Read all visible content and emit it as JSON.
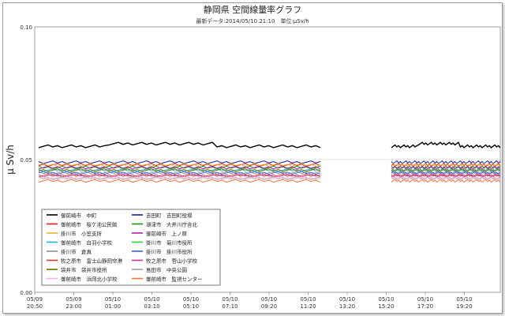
{
  "chart_data": {
    "type": "line",
    "title": "静岡県 空間線量率グラフ",
    "subtitle": "最新データ:2014/05/10 21:10　単位:μSv/h",
    "ylabel": "μ Sv/h",
    "xlabel": "",
    "ylim": [
      0.0,
      0.1
    ],
    "y_ticks": [
      "0.00",
      "0.05",
      "0.10"
    ],
    "grid": true,
    "legend_placement": "bottom-left",
    "x_ticks": [
      {
        "date": "05/09",
        "time": "20:50"
      },
      {
        "date": "05/09",
        "time": "23:00"
      },
      {
        "date": "05/10",
        "time": "01:00"
      },
      {
        "date": "05/10",
        "time": "03:10"
      },
      {
        "date": "05/10",
        "time": "05:10"
      },
      {
        "date": "05/10",
        "time": "07:10"
      },
      {
        "date": "05/10",
        "time": "09:20"
      },
      {
        "date": "05/10",
        "time": "11:20"
      },
      {
        "date": "05/10",
        "time": "13:20"
      },
      {
        "date": "05/10",
        "time": "15:20"
      },
      {
        "date": "05/10",
        "time": "17:20"
      },
      {
        "date": "05/10",
        "time": "19:20"
      }
    ],
    "x_range": [
      "05/09 20:50",
      "05/10 21:10"
    ],
    "data_gap": [
      "05/10 11:20",
      "05/10 15:20"
    ],
    "series": [
      {
        "name": "御前崎市　中町",
        "color": "#000000",
        "values": [
          0.055,
          0.055,
          0.056,
          0.056,
          0.056,
          0.055,
          0.055,
          0.055,
          0.055
        ]
      },
      {
        "name": "吉田町　吉田町役場",
        "color": "#1a1aa8",
        "values": [
          0.049,
          0.049,
          0.049,
          0.049,
          0.049,
          0.049,
          0.049,
          0.049,
          0.049
        ]
      },
      {
        "name": "御前崎市　桜ケ池公民館",
        "color": "#e02020",
        "values": [
          0.048,
          0.048,
          0.048,
          0.048,
          0.048,
          0.048,
          0.048,
          0.048,
          0.048
        ]
      },
      {
        "name": "湖津市　大井川庁舎北",
        "color": "#1a8c1a",
        "values": [
          0.047,
          0.047,
          0.047,
          0.047,
          0.047,
          0.047,
          0.047,
          0.047,
          0.047
        ]
      },
      {
        "name": "掛川市　小笠支所",
        "color": "#f0b030",
        "values": [
          0.048,
          0.048,
          0.048,
          0.048,
          0.048,
          0.048,
          0.048,
          0.048,
          0.048
        ]
      },
      {
        "name": "御前崎市　上ノ原",
        "color": "#b020b0",
        "values": [
          0.047,
          0.047,
          0.047,
          0.047,
          0.047,
          0.047,
          0.047,
          0.047,
          0.047
        ]
      },
      {
        "name": "御前崎市　白羽小学校",
        "color": "#20b0d0",
        "values": [
          0.046,
          0.046,
          0.046,
          0.046,
          0.046,
          0.046,
          0.046,
          0.046,
          0.046
        ]
      },
      {
        "name": "掛川市　菊川市役所",
        "color": "#30d030",
        "values": [
          0.046,
          0.046,
          0.046,
          0.046,
          0.046,
          0.046,
          0.046,
          0.046,
          0.046
        ]
      },
      {
        "name": "掛川市　倉真",
        "color": "#909090",
        "values": [
          0.045,
          0.045,
          0.045,
          0.045,
          0.045,
          0.045,
          0.045,
          0.045,
          0.045
        ]
      },
      {
        "name": "掛川市　掛川市役所",
        "color": "#4060e0",
        "values": [
          0.045,
          0.045,
          0.045,
          0.045,
          0.045,
          0.045,
          0.045,
          0.045,
          0.045
        ]
      },
      {
        "name": "牧之原市　富士山静岡空港",
        "color": "#d04020",
        "values": [
          0.044,
          0.044,
          0.044,
          0.044,
          0.044,
          0.044,
          0.044,
          0.044,
          0.044
        ]
      },
      {
        "name": "牧之原市　菅山小学校",
        "color": "#d030a0",
        "values": [
          0.044,
          0.044,
          0.044,
          0.044,
          0.044,
          0.044,
          0.044,
          0.044,
          0.044
        ]
      },
      {
        "name": "袋井市　袋井市役所",
        "color": "#707000",
        "values": [
          0.046,
          0.046,
          0.046,
          0.046,
          0.046,
          0.046,
          0.046,
          0.046,
          0.046
        ]
      },
      {
        "name": "島田市　中央公園",
        "color": "#a0a0a0",
        "values": [
          0.043,
          0.043,
          0.043,
          0.043,
          0.043,
          0.043,
          0.043,
          0.043,
          0.043
        ]
      },
      {
        "name": "御前崎市　浜岡北小学校",
        "color": "#ffb0e0",
        "values": [
          0.043,
          0.043,
          0.043,
          0.043,
          0.043,
          0.043,
          0.043,
          0.043,
          0.043
        ]
      },
      {
        "name": "御前崎市　監視センター",
        "color": "#ff7040",
        "values": [
          0.042,
          0.042,
          0.042,
          0.042,
          0.042,
          0.042,
          0.042,
          0.042,
          0.042
        ]
      }
    ]
  }
}
